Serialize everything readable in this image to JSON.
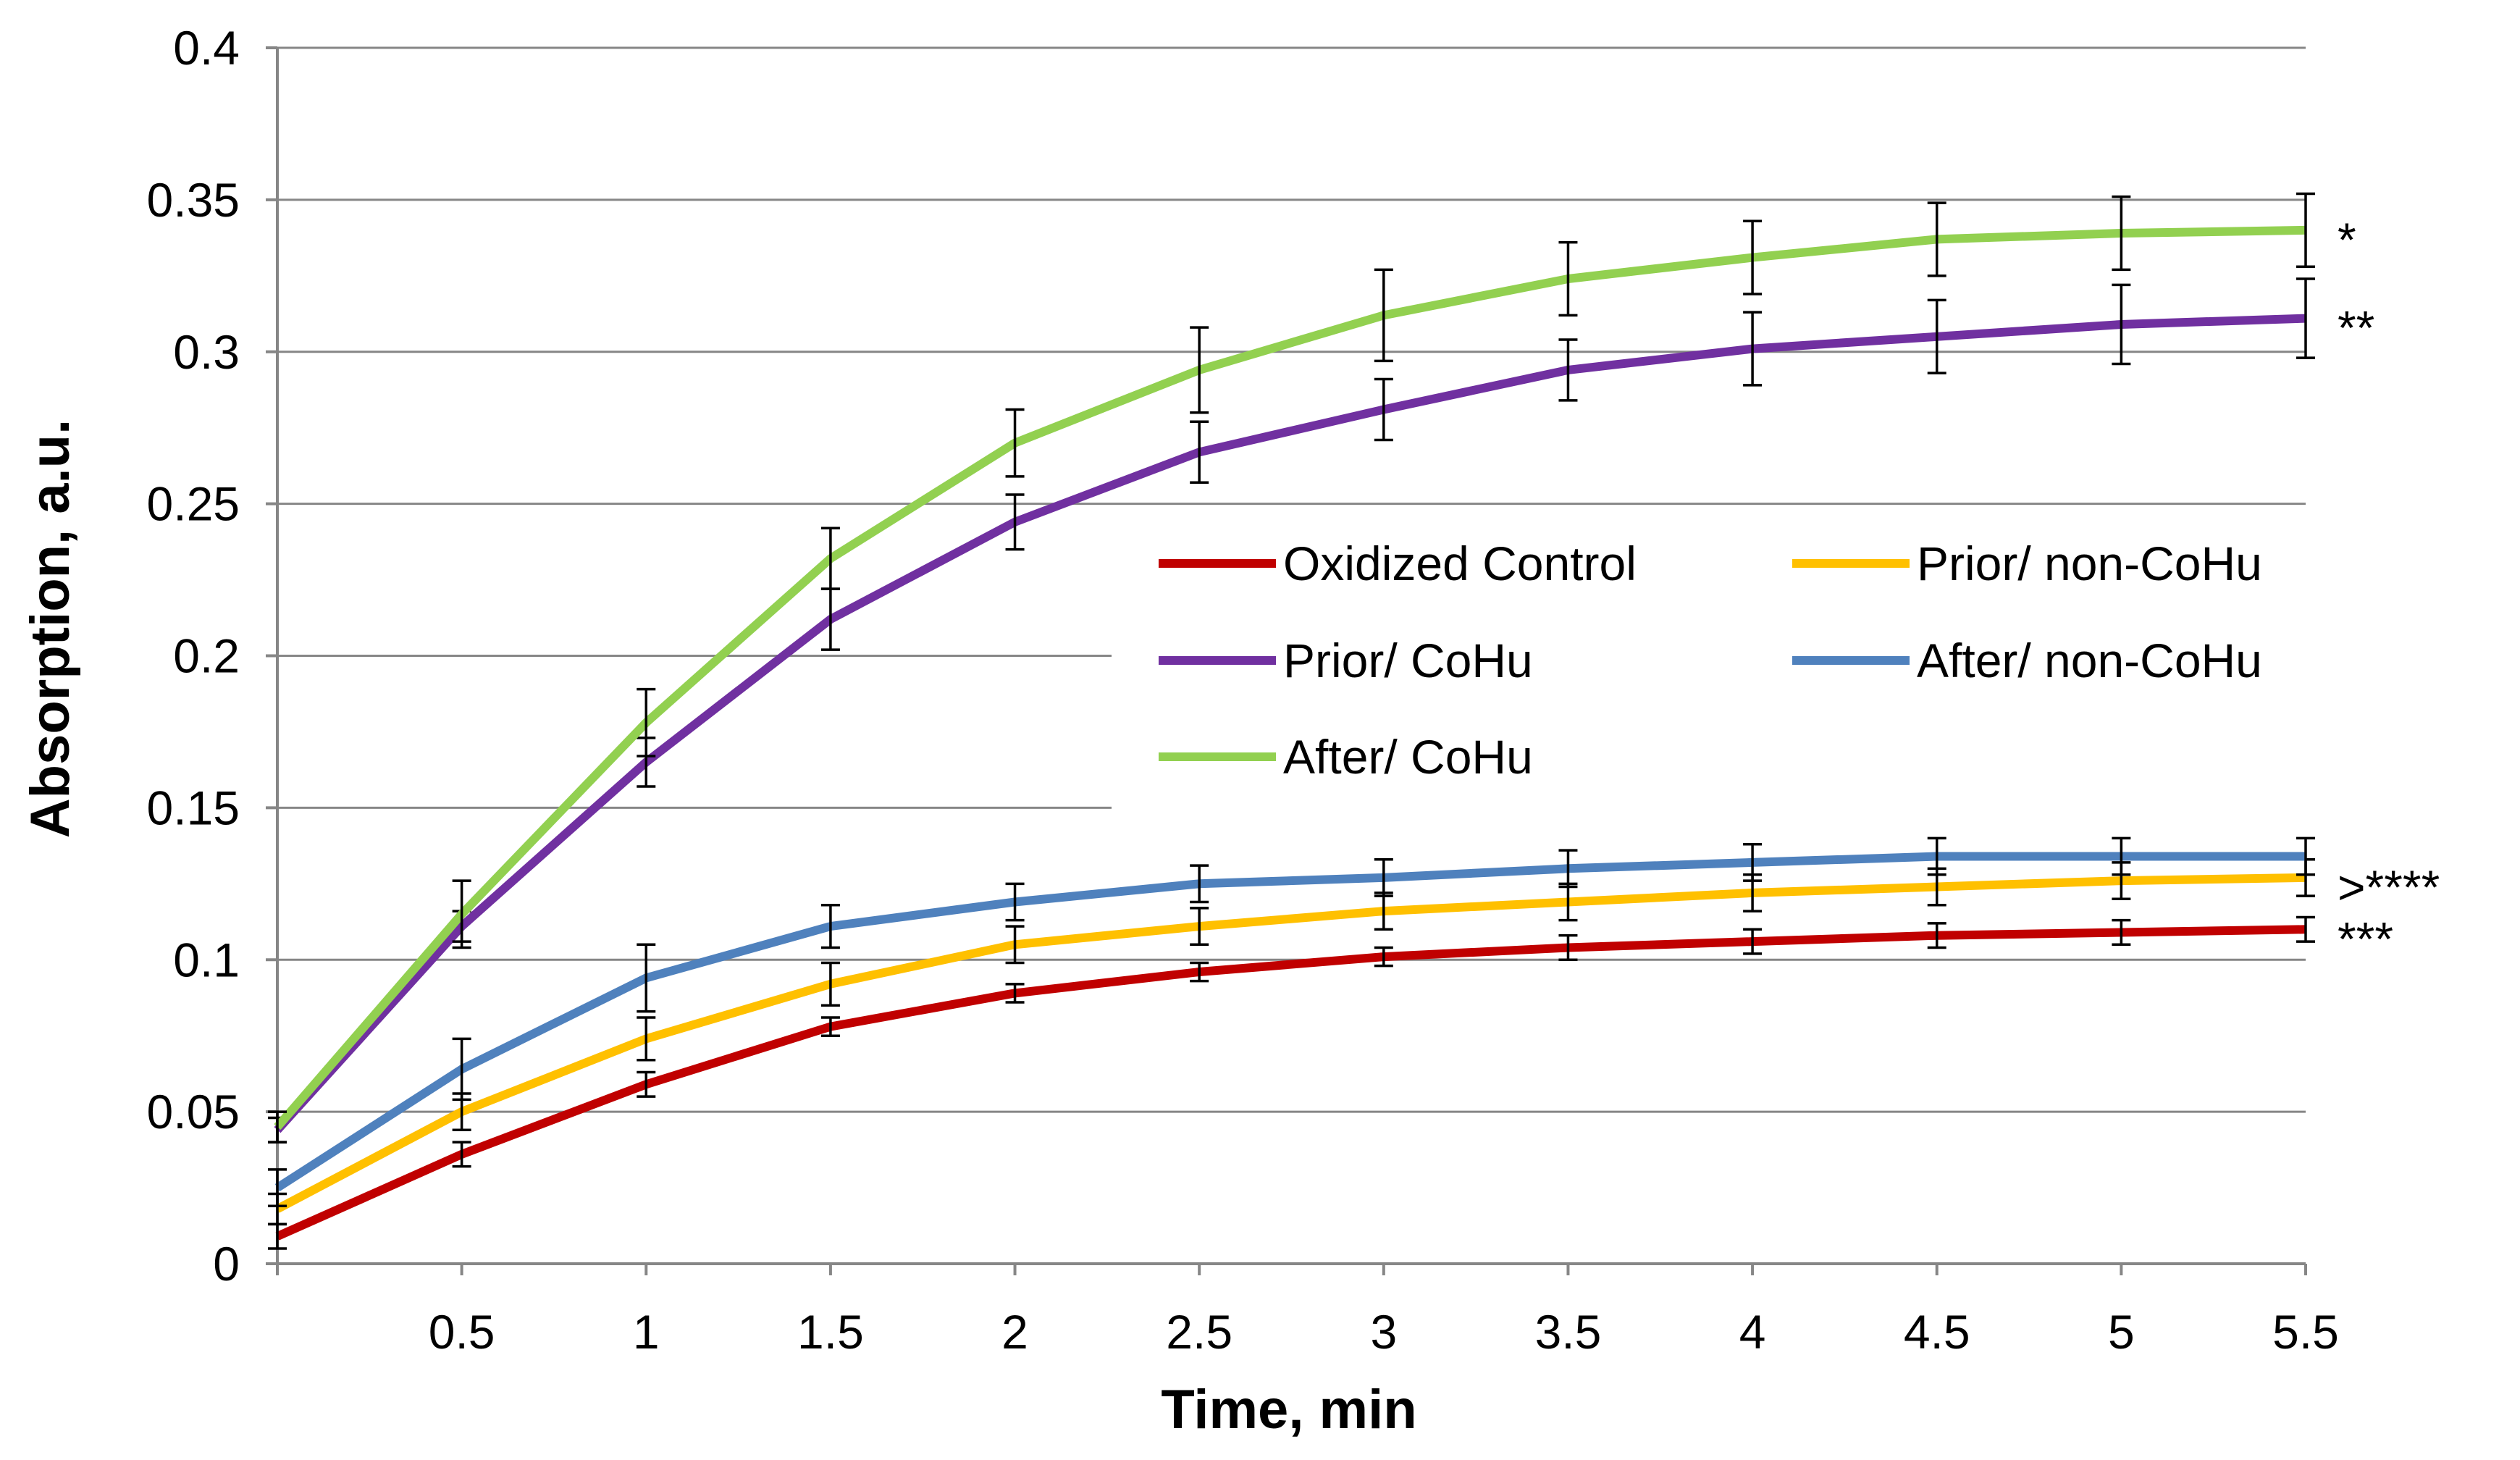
{
  "chart_data": {
    "type": "line",
    "xlabel": "Time, min",
    "ylabel": "Absorption, a.u.",
    "xlim": [
      0,
      5.5
    ],
    "ylim": [
      0,
      0.4
    ],
    "x_ticks": [
      0.5,
      1,
      1.5,
      2,
      2.5,
      3,
      3.5,
      4,
      4.5,
      5,
      5.5
    ],
    "x_tick_labels": [
      "0.5",
      "1",
      "1.5",
      "2",
      "2.5",
      "3",
      "3.5",
      "4",
      "4.5",
      "5",
      "5.5"
    ],
    "y_ticks": [
      0,
      0.05,
      0.1,
      0.15,
      0.2,
      0.25,
      0.3,
      0.35,
      0.4
    ],
    "y_tick_labels": [
      "0",
      "0.05",
      "0.1",
      "0.15",
      "0.2",
      "0.25",
      "0.3",
      "0.35",
      "0.4"
    ],
    "grid": "horizontal",
    "legend_position": "center-right",
    "x": [
      0,
      0.5,
      1,
      1.5,
      2,
      2.5,
      3,
      3.5,
      4,
      4.5,
      5,
      5.5
    ],
    "series": [
      {
        "name": "Oxidized Control",
        "color": "#C00000",
        "values": [
          0.009,
          0.036,
          0.059,
          0.078,
          0.089,
          0.096,
          0.101,
          0.104,
          0.106,
          0.108,
          0.109,
          0.11
        ],
        "errors": [
          0.004,
          0.004,
          0.004,
          0.003,
          0.003,
          0.003,
          0.003,
          0.004,
          0.004,
          0.004,
          0.004,
          0.004
        ],
        "annotation": "***"
      },
      {
        "name": "Prior/ non-CoHu",
        "color": "#FFC000",
        "values": [
          0.018,
          0.05,
          0.074,
          0.092,
          0.105,
          0.111,
          0.116,
          0.119,
          0.122,
          0.124,
          0.126,
          0.127
        ],
        "errors": [
          0.005,
          0.006,
          0.007,
          0.007,
          0.006,
          0.006,
          0.006,
          0.006,
          0.006,
          0.006,
          0.006,
          0.006
        ],
        "annotation": ">****"
      },
      {
        "name": "Prior/ CoHu",
        "color": "#7030A0",
        "values": [
          0.044,
          0.111,
          0.165,
          0.212,
          0.244,
          0.267,
          0.281,
          0.294,
          0.301,
          0.305,
          0.309,
          0.311
        ],
        "errors": [
          0.004,
          0.005,
          0.008,
          0.01,
          0.009,
          0.01,
          0.01,
          0.01,
          0.012,
          0.012,
          0.013,
          0.013
        ],
        "annotation": "**"
      },
      {
        "name": "After/ non-CoHu",
        "color": "#4F81BD",
        "values": [
          0.025,
          0.064,
          0.094,
          0.111,
          0.119,
          0.125,
          0.127,
          0.13,
          0.132,
          0.134,
          0.134,
          0.134
        ],
        "errors": [
          0.006,
          0.01,
          0.011,
          0.007,
          0.006,
          0.006,
          0.006,
          0.006,
          0.006,
          0.006,
          0.006,
          0.006
        ],
        "annotation": ""
      },
      {
        "name": "After/ CoHu",
        "color": "#92D050",
        "values": [
          0.045,
          0.115,
          0.178,
          0.232,
          0.27,
          0.294,
          0.312,
          0.324,
          0.331,
          0.337,
          0.339,
          0.34
        ],
        "errors": [
          0.005,
          0.011,
          0.011,
          0.01,
          0.011,
          0.014,
          0.015,
          0.012,
          0.012,
          0.012,
          0.012,
          0.012
        ],
        "annotation": "*"
      }
    ]
  }
}
